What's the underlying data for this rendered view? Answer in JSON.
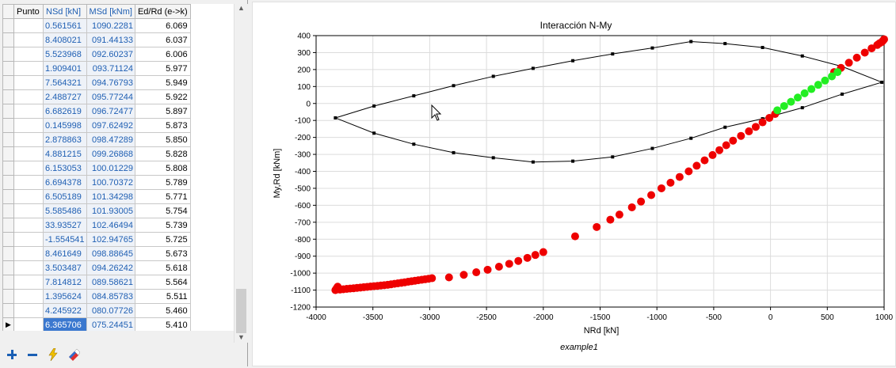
{
  "table": {
    "columns": [
      "Punto",
      "NSd [kN]",
      "MSd [kNm]",
      "Ed/Rd (e->k)"
    ],
    "rows": [
      [
        "",
        "0.561561",
        "1090.2281",
        "6.069"
      ],
      [
        "",
        "8.408021",
        "091.44133",
        "6.037"
      ],
      [
        "",
        "5.523968",
        "092.60237",
        "6.006"
      ],
      [
        "",
        "1.909401",
        "093.71124",
        "5.977"
      ],
      [
        "",
        "7.564321",
        "094.76793",
        "5.949"
      ],
      [
        "",
        "2.488727",
        "095.77244",
        "5.922"
      ],
      [
        "",
        "6.682619",
        "096.72477",
        "5.897"
      ],
      [
        "",
        "0.145998",
        "097.62492",
        "5.873"
      ],
      [
        "",
        "2.878863",
        "098.47289",
        "5.850"
      ],
      [
        "",
        "4.881215",
        "099.26868",
        "5.828"
      ],
      [
        "",
        "6.153053",
        "100.01229",
        "5.808"
      ],
      [
        "",
        "6.694378",
        "100.70372",
        "5.789"
      ],
      [
        "",
        "6.505189",
        "101.34298",
        "5.771"
      ],
      [
        "",
        "5.585486",
        "101.93005",
        "5.754"
      ],
      [
        "",
        "33.93527",
        "102.46494",
        "5.739"
      ],
      [
        "",
        "-1.554541",
        "102.94765",
        "5.725"
      ],
      [
        "",
        "8.461649",
        "098.88645",
        "5.673"
      ],
      [
        "",
        "3.503487",
        "094.26242",
        "5.618"
      ],
      [
        "",
        "7.814812",
        "089.58621",
        "5.564"
      ],
      [
        "",
        "1.395624",
        "084.85783",
        "5.511"
      ],
      [
        "",
        "4.245922",
        "080.07726",
        "5.460"
      ],
      [
        "",
        "6.365706",
        "075.24451",
        "5.410"
      ]
    ],
    "current_row": 21,
    "current_row_marker": "▶"
  },
  "toolbar": {
    "buttons": [
      {
        "name": "add-icon",
        "glyph": "+",
        "color": "#1a5fb4"
      },
      {
        "name": "remove-icon",
        "glyph": "−",
        "color": "#1a5fb4"
      },
      {
        "name": "lightning-icon",
        "glyph": "⚡",
        "color": "#e6b800"
      },
      {
        "name": "eraser-icon",
        "glyph": "",
        "color": "#d03030"
      }
    ]
  },
  "chart_data": {
    "type": "scatter",
    "title": "Interacción N-My",
    "xlabel": "NRd [kN]",
    "ylabel": "My,Rd [kNm]",
    "footnote": "example1",
    "xlim": [
      -4000,
      1000
    ],
    "ylim": [
      -1200,
      400
    ],
    "xticks": [
      -4000,
      -3500,
      -3000,
      -2500,
      -2000,
      -1500,
      -1000,
      -500,
      0,
      500,
      1000
    ],
    "yticks": [
      400,
      300,
      200,
      100,
      0,
      -100,
      -200,
      -300,
      -400,
      -500,
      -600,
      -700,
      -800,
      -900,
      -1000,
      -1100,
      -1200
    ],
    "grid": true,
    "colors": {
      "envelope": "#000000",
      "fail": "#ee0000",
      "ok": "#22ee22"
    },
    "envelope": [
      [
        -3830,
        -85
      ],
      [
        -3490,
        -15
      ],
      [
        -3140,
        45
      ],
      [
        -2790,
        105
      ],
      [
        -2440,
        160
      ],
      [
        -2090,
        207
      ],
      [
        -1740,
        252
      ],
      [
        -1390,
        292
      ],
      [
        -1040,
        327
      ],
      [
        -700,
        365
      ],
      [
        -400,
        353
      ],
      [
        -70,
        330
      ],
      [
        280,
        280
      ],
      [
        630,
        218
      ],
      [
        980,
        125
      ],
      [
        630,
        55
      ],
      [
        280,
        -25
      ],
      [
        -70,
        -90
      ],
      [
        -400,
        -140
      ],
      [
        -700,
        -205
      ],
      [
        -1040,
        -265
      ],
      [
        -1390,
        -315
      ],
      [
        -1740,
        -340
      ],
      [
        -2090,
        -345
      ],
      [
        -2440,
        -320
      ],
      [
        -2790,
        -290
      ],
      [
        -3140,
        -240
      ],
      [
        -3490,
        -175
      ],
      [
        -3830,
        -85
      ]
    ],
    "series_fail": [
      [
        -3830,
        -1100
      ],
      [
        -3820,
        -1090
      ],
      [
        -3810,
        -1080
      ],
      [
        -3790,
        -1097
      ],
      [
        -3760,
        -1095
      ],
      [
        -3730,
        -1093
      ],
      [
        -3700,
        -1091
      ],
      [
        -3670,
        -1089
      ],
      [
        -3640,
        -1087
      ],
      [
        -3610,
        -1085
      ],
      [
        -3580,
        -1083
      ],
      [
        -3550,
        -1081
      ],
      [
        -3520,
        -1079
      ],
      [
        -3490,
        -1077
      ],
      [
        -3460,
        -1075
      ],
      [
        -3430,
        -1073
      ],
      [
        -3400,
        -1071
      ],
      [
        -3370,
        -1069
      ],
      [
        -3340,
        -1066
      ],
      [
        -3310,
        -1063
      ],
      [
        -3280,
        -1060
      ],
      [
        -3250,
        -1057
      ],
      [
        -3220,
        -1054
      ],
      [
        -3190,
        -1051
      ],
      [
        -3160,
        -1048
      ],
      [
        -3130,
        -1045
      ],
      [
        -3100,
        -1042
      ],
      [
        -3070,
        -1039
      ],
      [
        -3040,
        -1036
      ],
      [
        -3010,
        -1033
      ],
      [
        -2980,
        -1030
      ],
      [
        -2830,
        -1025
      ],
      [
        -2700,
        -1010
      ],
      [
        -2590,
        -995
      ],
      [
        -2490,
        -980
      ],
      [
        -2390,
        -962
      ],
      [
        -2300,
        -945
      ],
      [
        -2220,
        -928
      ],
      [
        -2140,
        -910
      ],
      [
        -2070,
        -893
      ],
      [
        -2000,
        -876
      ],
      [
        -1720,
        -783
      ],
      [
        -1530,
        -728
      ],
      [
        -1410,
        -685
      ],
      [
        -1330,
        -655
      ],
      [
        -1220,
        -612
      ],
      [
        -1140,
        -578
      ],
      [
        -1050,
        -540
      ],
      [
        -960,
        -500
      ],
      [
        -880,
        -467
      ],
      [
        -800,
        -433
      ],
      [
        -720,
        -400
      ],
      [
        -650,
        -367
      ],
      [
        -580,
        -335
      ],
      [
        -510,
        -304
      ],
      [
        -450,
        -275
      ],
      [
        -390,
        -246
      ],
      [
        -330,
        -219
      ],
      [
        -260,
        -191
      ],
      [
        -190,
        -164
      ],
      [
        -130,
        -138
      ],
      [
        -70,
        -111
      ],
      [
        -10,
        -85
      ],
      [
        40,
        -62
      ],
      [
        940,
        345
      ],
      [
        960,
        355
      ],
      [
        980,
        362
      ],
      [
        990,
        370
      ],
      [
        1000,
        378
      ],
      [
        890,
        325
      ],
      [
        830,
        300
      ],
      [
        760,
        270
      ],
      [
        690,
        240
      ],
      [
        620,
        210
      ],
      [
        560,
        185
      ]
    ],
    "series_ok": [
      [
        60,
        -40
      ],
      [
        120,
        -15
      ],
      [
        180,
        10
      ],
      [
        240,
        35
      ],
      [
        300,
        60
      ],
      [
        360,
        85
      ],
      [
        420,
        110
      ],
      [
        480,
        135
      ],
      [
        540,
        160
      ],
      [
        590,
        185
      ]
    ]
  }
}
